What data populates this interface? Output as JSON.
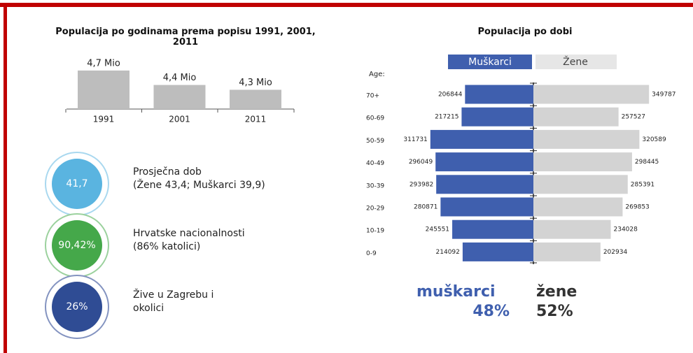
{
  "chart_data": [
    {
      "type": "bar",
      "title": "Populacija po godinama prema popisu 1991, 2001, 2011",
      "categories": [
        "1991",
        "2001",
        "2011"
      ],
      "values": [
        4.7,
        4.4,
        4.3
      ],
      "value_labels": [
        "4,7 Mio",
        "4,4 Mio",
        "4,3 Mio"
      ],
      "color": "#bdbdbd",
      "ylim": [
        3.9,
        4.8
      ]
    },
    {
      "type": "pyramid",
      "title": "Populacija po dobi",
      "axis_label": "Age:",
      "categories": [
        "70+",
        "60-69",
        "50-59",
        "40-49",
        "30-39",
        "20-29",
        "10-19",
        "0-9"
      ],
      "series": [
        {
          "name": "Muškarci",
          "color": "#3f5fae",
          "values": [
            206844,
            217215,
            311731,
            296049,
            293982,
            280871,
            245551,
            214092
          ]
        },
        {
          "name": "Žene",
          "color": "#d3d3d3",
          "values": [
            349787,
            257527,
            320589,
            298445,
            285391,
            269853,
            234028,
            202934
          ]
        }
      ],
      "xlim": [
        0,
        360000
      ]
    }
  ],
  "stats": [
    {
      "value": "41,7",
      "label": "Prosječna dob",
      "detail": "(Žene 43,4; Muškarci 39,9)",
      "color": "#5ab4e0",
      "ring": "#a9d8ef"
    },
    {
      "value": "90,42%",
      "label": "Hrvatske nacionalnosti",
      "detail": "(86% katolici)",
      "color": "#45a84a",
      "ring": "#9bd19d"
    },
    {
      "value": "26%",
      "label": "Žive u Zagrebu i",
      "detail": "okolici",
      "color": "#2f4c94",
      "ring": "#8393c0"
    }
  ],
  "share": {
    "men_label": "muškarci",
    "men": "48%",
    "women_label": "žene",
    "women": "52%"
  }
}
